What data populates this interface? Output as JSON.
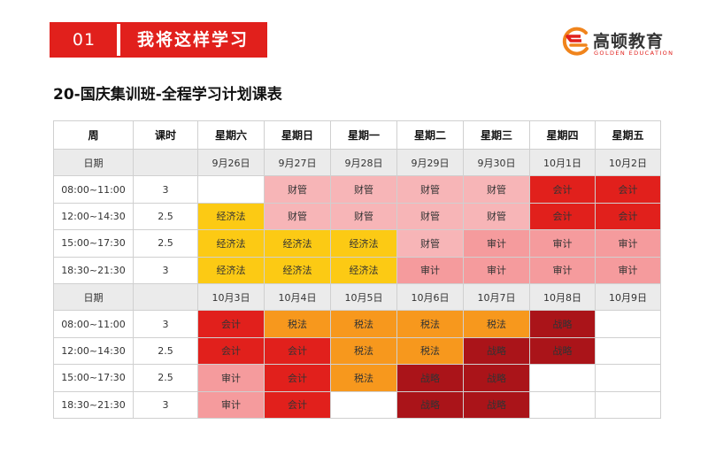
{
  "header": {
    "number": "01",
    "section_title": "我将这样学习"
  },
  "logo": {
    "name": "高顿教育",
    "subtitle": "GOLDEN EDUCATION",
    "brand_color": "#e1201c"
  },
  "document": {
    "title": "20-国庆集训班-全程学习计划课表"
  },
  "colors": {
    "财管": "#f7b5b7",
    "会计": "#e1201c",
    "经济法": "#fcca14",
    "审计": "#f59b9d",
    "税法": "#f7981d",
    "战略": "#aa1419"
  },
  "schedule": {
    "headers": [
      "周",
      "课时",
      "星期六",
      "星期日",
      "星期一",
      "星期二",
      "星期三",
      "星期四",
      "星期五"
    ],
    "weeks": [
      {
        "date_label": "日期",
        "dates": [
          "9月26日",
          "9月27日",
          "9月28日",
          "9月29日",
          "9月30日",
          "10月1日",
          "10月2日"
        ],
        "rows": [
          {
            "time": "08:00~11:00",
            "hours": "3",
            "cells": [
              "",
              "财管",
              "财管",
              "财管",
              "财管",
              "会计",
              "会计"
            ]
          },
          {
            "time": "12:00~14:30",
            "hours": "2.5",
            "cells": [
              "经济法",
              "财管",
              "财管",
              "财管",
              "财管",
              "会计",
              "会计"
            ]
          },
          {
            "time": "15:00~17:30",
            "hours": "2.5",
            "cells": [
              "经济法",
              "经济法",
              "经济法",
              "财管",
              "审计",
              "审计",
              "审计"
            ]
          },
          {
            "time": "18:30~21:30",
            "hours": "3",
            "cells": [
              "经济法",
              "经济法",
              "经济法",
              "审计",
              "审计",
              "审计",
              "审计"
            ]
          }
        ]
      },
      {
        "date_label": "日期",
        "dates": [
          "10月3日",
          "10月4日",
          "10月5日",
          "10月6日",
          "10月7日",
          "10月8日",
          "10月9日"
        ],
        "rows": [
          {
            "time": "08:00~11:00",
            "hours": "3",
            "cells": [
              "会计",
              "税法",
              "税法",
              "税法",
              "税法",
              "战略",
              ""
            ]
          },
          {
            "time": "12:00~14:30",
            "hours": "2.5",
            "cells": [
              "会计",
              "会计",
              "税法",
              "税法",
              "战略",
              "战略",
              ""
            ]
          },
          {
            "time": "15:00~17:30",
            "hours": "2.5",
            "cells": [
              "审计",
              "会计",
              "税法",
              "战略",
              "战略",
              "",
              ""
            ]
          },
          {
            "time": "18:30~21:30",
            "hours": "3",
            "cells": [
              "审计",
              "会计",
              "",
              "战略",
              "战略",
              "",
              ""
            ]
          }
        ]
      }
    ]
  }
}
